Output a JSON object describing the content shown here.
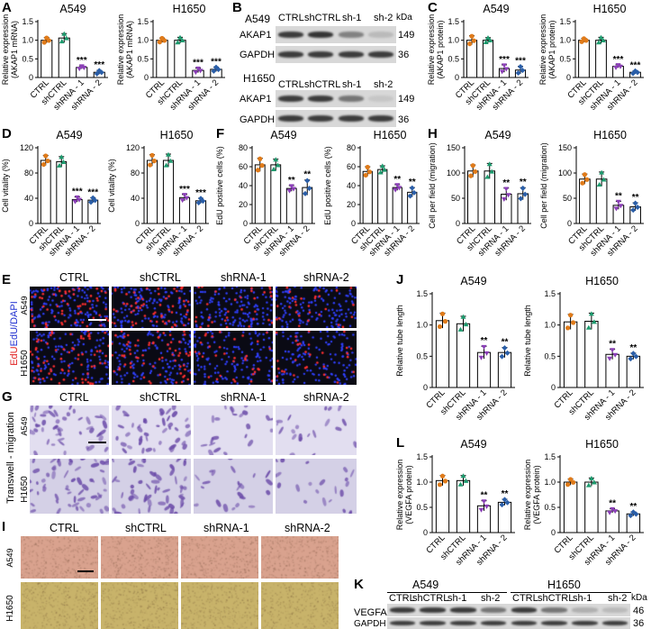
{
  "panel_letters": {
    "A": "A",
    "B": "B",
    "C": "C",
    "D": "D",
    "E": "E",
    "F": "F",
    "G": "G",
    "H": "H",
    "I": "I",
    "J": "J",
    "K": "K",
    "L": "L"
  },
  "categories": [
    "CTRL",
    "shCTRL",
    "shRNA - 1",
    "shRNA - 2"
  ],
  "colors": {
    "ctrl": "#e07b1a",
    "shctrl": "#1e9a6e",
    "sh1": "#8b3fb8",
    "sh2": "#2a5ea8",
    "bar": "#ffffff",
    "edu_bg": "#0a0a14",
    "edu_red": "#ff3030",
    "edu_blue": "#3040ff",
    "transwell_bg": "#e2def0",
    "transwell_cell": "#6a4aa8",
    "tube_bg1": "#d9a28e",
    "tube_bg2": "#c8b36a"
  },
  "plots": {
    "A1": {
      "title": "A549",
      "ylabel_lines": [
        "Relative expression",
        "(AKAP1 mRNA)"
      ],
      "ticks": [
        "0",
        "0.5",
        "1.0",
        "1.5"
      ],
      "sig": [
        "",
        "",
        "***",
        "***"
      ]
    },
    "A2": {
      "title": "H1650",
      "ylabel_lines": [
        "Relative expression",
        "(AKAP1 mRNA)"
      ],
      "ticks": [
        "0",
        "0.5",
        "1.0",
        "1.5"
      ],
      "sig": [
        "",
        "",
        "***",
        "***"
      ]
    },
    "C1": {
      "title": "A549",
      "ylabel_lines": [
        "Relative expression",
        "(AKAP1 protein)"
      ],
      "ticks": [
        "0",
        "0.5",
        "1.0",
        "1.5"
      ],
      "sig": [
        "",
        "",
        "***",
        "***"
      ]
    },
    "C2": {
      "title": "H1650",
      "ylabel_lines": [
        "Relative expression",
        "(AKAP1 protein)"
      ],
      "ticks": [
        "0",
        "0.5",
        "1.0",
        "1.5"
      ],
      "sig": [
        "",
        "",
        "***",
        "***"
      ]
    },
    "D1": {
      "title": "A549",
      "ylabel_lines": [
        "Cell vitality (%)"
      ],
      "ticks": [
        "0",
        "40",
        "80",
        "120"
      ],
      "sig": [
        "",
        "",
        "***",
        "***"
      ]
    },
    "D2": {
      "title": "H1650",
      "ylabel_lines": [
        "Cell vitality (%)"
      ],
      "ticks": [
        "0",
        "40",
        "80",
        "120"
      ],
      "sig": [
        "",
        "",
        "***",
        "***"
      ]
    },
    "F1": {
      "title": "A549",
      "ylabel_lines": [
        "EdU positive cells (%)"
      ],
      "ticks": [
        "0",
        "20",
        "40",
        "60",
        "80"
      ],
      "sig": [
        "",
        "",
        "**",
        "**"
      ]
    },
    "F2": {
      "title": "H1650",
      "ylabel_lines": [
        "EdU positive cells (%)"
      ],
      "ticks": [
        "0",
        "20",
        "40",
        "60",
        "80"
      ],
      "sig": [
        "",
        "",
        "**",
        "**"
      ]
    },
    "H1": {
      "title": "A549",
      "ylabel_lines": [
        "Cell per field (migration)"
      ],
      "ticks": [
        "0",
        "50",
        "100",
        "150"
      ],
      "sig": [
        "",
        "",
        "**",
        "**"
      ]
    },
    "H2": {
      "title": "H1650",
      "ylabel_lines": [
        "Cell per field (migration)"
      ],
      "ticks": [
        "0",
        "50",
        "100",
        "150"
      ],
      "sig": [
        "",
        "",
        "**",
        "**"
      ]
    },
    "J1": {
      "title": "A549",
      "ylabel_lines": [
        "Relative tube length"
      ],
      "ticks": [
        "0",
        "0.5",
        "1.0",
        "1.5"
      ],
      "sig": [
        "",
        "",
        "**",
        "**"
      ]
    },
    "J2": {
      "title": "H1650",
      "ylabel_lines": [
        "Relative tube length"
      ],
      "ticks": [
        "0",
        "0.5",
        "1.0",
        "1.5"
      ],
      "sig": [
        "",
        "",
        "**",
        "**"
      ]
    },
    "L1": {
      "title": "A549",
      "ylabel_lines": [
        "Relative expression",
        "(VEGFA protein)"
      ],
      "ticks": [
        "0",
        "0.5",
        "1.0",
        "1.5"
      ],
      "sig": [
        "",
        "",
        "**",
        "**"
      ]
    },
    "L2": {
      "title": "H1650",
      "ylabel_lines": [
        "Relative expression",
        "(VEGFA protein)"
      ],
      "ticks": [
        "0",
        "0.5",
        "1.0",
        "1.5"
      ],
      "sig": [
        "",
        "",
        "**",
        "**"
      ]
    }
  },
  "chart_data": [
    {
      "id": "A1",
      "type": "bar",
      "title": "A549",
      "ylabel": "Relative expression (AKAP1 mRNA)",
      "categories": [
        "CTRL",
        "shCTRL",
        "shRNA - 1",
        "shRNA - 2"
      ],
      "values": [
        1.0,
        1.06,
        0.27,
        0.14
      ],
      "errors": [
        0.07,
        0.12,
        0.04,
        0.05
      ],
      "ylim": [
        0,
        1.5
      ]
    },
    {
      "id": "A2",
      "type": "bar",
      "title": "H1650",
      "ylabel": "Relative expression (AKAP1 mRNA)",
      "categories": [
        "CTRL",
        "shCTRL",
        "shRNA - 1",
        "shRNA - 2"
      ],
      "values": [
        1.0,
        1.0,
        0.19,
        0.22
      ],
      "errors": [
        0.06,
        0.08,
        0.06,
        0.06
      ],
      "ylim": [
        0,
        1.5
      ]
    },
    {
      "id": "C1",
      "type": "bar",
      "title": "A549",
      "ylabel": "Relative expression (AKAP1 protein)",
      "categories": [
        "CTRL",
        "shCTRL",
        "shRNA - 1",
        "shRNA - 2"
      ],
      "values": [
        1.0,
        1.0,
        0.24,
        0.2
      ],
      "errors": [
        0.12,
        0.07,
        0.1,
        0.1
      ],
      "ylim": [
        0,
        1.5
      ]
    },
    {
      "id": "C2",
      "type": "bar",
      "title": "H1650",
      "ylabel": "Relative expression (AKAP1 protein)",
      "categories": [
        "CTRL",
        "shCTRL",
        "shRNA - 1",
        "shRNA - 2"
      ],
      "values": [
        1.0,
        1.0,
        0.3,
        0.14
      ],
      "errors": [
        0.05,
        0.08,
        0.04,
        0.04
      ],
      "ylim": [
        0,
        1.5
      ]
    },
    {
      "id": "D1",
      "type": "bar",
      "title": "A549",
      "ylabel": "Cell vitality (%)",
      "categories": [
        "CTRL",
        "shCTRL",
        "shRNA - 1",
        "shRNA - 2"
      ],
      "values": [
        100,
        98,
        38,
        37
      ],
      "errors": [
        8,
        8,
        4,
        4
      ],
      "ylim": [
        0,
        120
      ]
    },
    {
      "id": "D2",
      "type": "bar",
      "title": "H1650",
      "ylabel": "Cell vitality (%)",
      "categories": [
        "CTRL",
        "shCTRL",
        "shRNA - 1",
        "shRNA - 2"
      ],
      "values": [
        100,
        100,
        41,
        36
      ],
      "errors": [
        9,
        10,
        5,
        4
      ],
      "ylim": [
        0,
        120
      ]
    },
    {
      "id": "F1",
      "type": "bar",
      "title": "A549",
      "ylabel": "EdU positive cells (%)",
      "categories": [
        "CTRL",
        "shCTRL",
        "shRNA - 1",
        "shRNA - 2"
      ],
      "values": [
        62,
        62,
        37,
        38
      ],
      "errors": [
        7,
        6,
        3,
        8
      ],
      "ylim": [
        0,
        80
      ]
    },
    {
      "id": "F2",
      "type": "bar",
      "title": "H1650",
      "ylabel": "EdU positive cells (%)",
      "categories": [
        "CTRL",
        "shCTRL",
        "shRNA - 1",
        "shRNA - 2"
      ],
      "values": [
        55,
        57,
        38,
        33
      ],
      "errors": [
        5,
        4,
        3,
        5
      ],
      "ylim": [
        0,
        80
      ]
    },
    {
      "id": "H1",
      "type": "bar",
      "title": "A549",
      "ylabel": "Cell per field (migration)",
      "categories": [
        "CTRL",
        "shCTRL",
        "shRNA - 1",
        "shRNA - 2"
      ],
      "values": [
        104,
        104,
        58,
        59
      ],
      "errors": [
        12,
        15,
        12,
        12
      ],
      "ylim": [
        0,
        150
      ]
    },
    {
      "id": "H2",
      "type": "bar",
      "title": "H1650",
      "ylabel": "Cell per field (migration)",
      "categories": [
        "CTRL",
        "shCTRL",
        "shRNA - 1",
        "shRNA - 2"
      ],
      "values": [
        88,
        88,
        36,
        33
      ],
      "errors": [
        10,
        14,
        8,
        8
      ],
      "ylim": [
        0,
        150
      ]
    },
    {
      "id": "J1",
      "type": "bar",
      "title": "A549",
      "ylabel": "Relative tube length",
      "categories": [
        "CTRL",
        "shCTRL",
        "shRNA - 1",
        "shRNA - 2"
      ],
      "values": [
        1.07,
        1.02,
        0.56,
        0.56
      ],
      "errors": [
        0.12,
        0.12,
        0.1,
        0.08
      ],
      "ylim": [
        0,
        1.5
      ]
    },
    {
      "id": "J2",
      "type": "bar",
      "title": "H1650",
      "ylabel": "Relative tube length",
      "categories": [
        "CTRL",
        "shCTRL",
        "shRNA - 1",
        "shRNA - 2"
      ],
      "values": [
        1.05,
        1.06,
        0.53,
        0.5
      ],
      "errors": [
        0.12,
        0.13,
        0.08,
        0.05
      ],
      "ylim": [
        0,
        1.5
      ]
    },
    {
      "id": "L1",
      "type": "bar",
      "title": "A549",
      "ylabel": "Relative expression (VEGFA protein)",
      "categories": [
        "CTRL",
        "shCTRL",
        "shRNA - 1",
        "shRNA - 2"
      ],
      "values": [
        1.03,
        1.03,
        0.53,
        0.6
      ],
      "errors": [
        0.1,
        0.1,
        0.1,
        0.06
      ],
      "ylim": [
        0,
        1.5
      ]
    },
    {
      "id": "L2",
      "type": "bar",
      "title": "H1650",
      "ylabel": "Relative expression (VEGFA protein)",
      "categories": [
        "CTRL",
        "shCTRL",
        "shRNA - 1",
        "shRNA - 2"
      ],
      "values": [
        1.0,
        1.0,
        0.43,
        0.37
      ],
      "errors": [
        0.06,
        0.08,
        0.04,
        0.04
      ],
      "ylim": [
        0,
        1.5
      ]
    }
  ],
  "blots_B": {
    "groups": [
      {
        "cell": "A549",
        "headers": [
          "CTRL",
          "shCTRL",
          "sh-1",
          "sh-2"
        ],
        "kda_label": "kDa",
        "rows": [
          {
            "name": "AKAP1",
            "kda": "149",
            "intensities": [
              0.85,
              0.88,
              0.55,
              0.3
            ]
          },
          {
            "name": "GAPDH",
            "kda": "36",
            "intensities": [
              0.85,
              0.85,
              0.85,
              0.85
            ]
          }
        ]
      },
      {
        "cell": "H1650",
        "headers": [
          "CTRL",
          "shCTRL",
          "sh-1",
          "sh-2"
        ],
        "kda_label": "",
        "rows": [
          {
            "name": "AKAP1",
            "kda": "149",
            "intensities": [
              0.85,
              0.85,
              0.6,
              0.25
            ]
          },
          {
            "name": "GAPDH",
            "kda": "36",
            "intensities": [
              0.85,
              0.85,
              0.85,
              0.85
            ]
          }
        ]
      }
    ]
  },
  "blots_K": {
    "cells": [
      "A549",
      "H1650"
    ],
    "headers": [
      "CTRL",
      "shCTRL",
      "sh-1",
      "sh-2",
      "CTRL",
      "shCTRL",
      "sh-1",
      "sh-2"
    ],
    "kda_label": "kDa",
    "rows": [
      {
        "name": "VEGFA",
        "kda": "46",
        "intensities": [
          0.85,
          0.85,
          0.85,
          0.6,
          0.85,
          0.6,
          0.35,
          0.3
        ]
      },
      {
        "name": "GAPDH",
        "kda": "36",
        "intensities": [
          0.85,
          0.85,
          0.85,
          0.85,
          0.85,
          0.85,
          0.85,
          0.85
        ]
      }
    ]
  },
  "image_panels": {
    "columns": [
      "CTRL",
      "shCTRL",
      "shRNA-1",
      "shRNA-2"
    ],
    "rows": [
      "A549",
      "H1650"
    ],
    "E_side": "EdU/DAPI",
    "G_side": "Transwell - migration"
  }
}
